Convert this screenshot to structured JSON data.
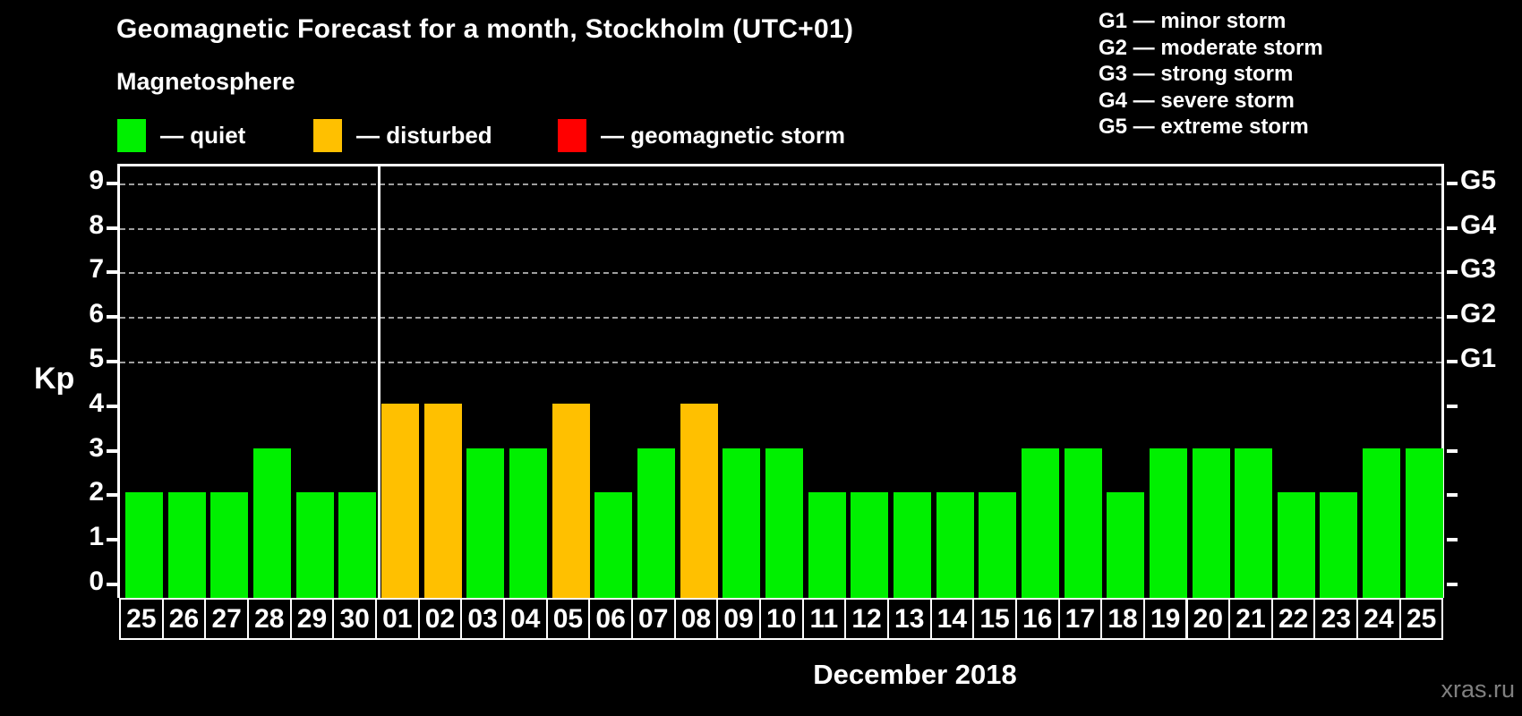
{
  "title": "Geomagnetic Forecast for a month, Stockholm (UTC+01)",
  "subtitle": "Magnetosphere",
  "legend": {
    "items": [
      {
        "status": "quiet",
        "label": "— quiet",
        "color": "#00F000"
      },
      {
        "status": "disturbed",
        "label": "— disturbed",
        "color": "#FFC000"
      },
      {
        "status": "storm",
        "label": "— geomagnetic storm",
        "color": "#FF0000"
      }
    ]
  },
  "g_scale_legend": [
    "G1 — minor storm",
    "G2 — moderate storm",
    "G3 — strong storm",
    "G4 — severe storm",
    "G5 — extreme storm"
  ],
  "watermark": "xras.ru",
  "chart_data": {
    "type": "bar",
    "title": "Geomagnetic Forecast for a month, Stockholm (UTC+01)",
    "xlabel": "December 2018",
    "ylabel": "Kp",
    "ylim": [
      0,
      9
    ],
    "yticks": [
      0,
      1,
      2,
      3,
      4,
      5,
      6,
      7,
      8,
      9
    ],
    "gridlines_at": [
      5,
      6,
      7,
      8,
      9
    ],
    "grid_style": "dashed",
    "legend_position": "top",
    "right_axis_labels": [
      {
        "label": "G1",
        "kp": 5
      },
      {
        "label": "G2",
        "kp": 6
      },
      {
        "label": "G3",
        "kp": 7
      },
      {
        "label": "G4",
        "kp": 8
      },
      {
        "label": "G5",
        "kp": 9
      }
    ],
    "month_separator_after_index": 5,
    "categories": [
      "25",
      "26",
      "27",
      "28",
      "29",
      "30",
      "01",
      "02",
      "03",
      "04",
      "05",
      "06",
      "07",
      "08",
      "09",
      "10",
      "11",
      "12",
      "13",
      "14",
      "15",
      "16",
      "17",
      "18",
      "19",
      "20",
      "21",
      "22",
      "23",
      "24",
      "25"
    ],
    "values": [
      2,
      2,
      2,
      3,
      2,
      2,
      4,
      4,
      3,
      3,
      4,
      2,
      3,
      4,
      3,
      3,
      2,
      2,
      2,
      2,
      2,
      3,
      3,
      2,
      3,
      3,
      3,
      2,
      2,
      3,
      3
    ],
    "statuses": [
      "quiet",
      "quiet",
      "quiet",
      "quiet",
      "quiet",
      "quiet",
      "disturbed",
      "disturbed",
      "quiet",
      "quiet",
      "disturbed",
      "quiet",
      "quiet",
      "disturbed",
      "quiet",
      "quiet",
      "quiet",
      "quiet",
      "quiet",
      "quiet",
      "quiet",
      "quiet",
      "quiet",
      "quiet",
      "quiet",
      "quiet",
      "quiet",
      "quiet",
      "quiet",
      "quiet",
      "quiet"
    ]
  }
}
